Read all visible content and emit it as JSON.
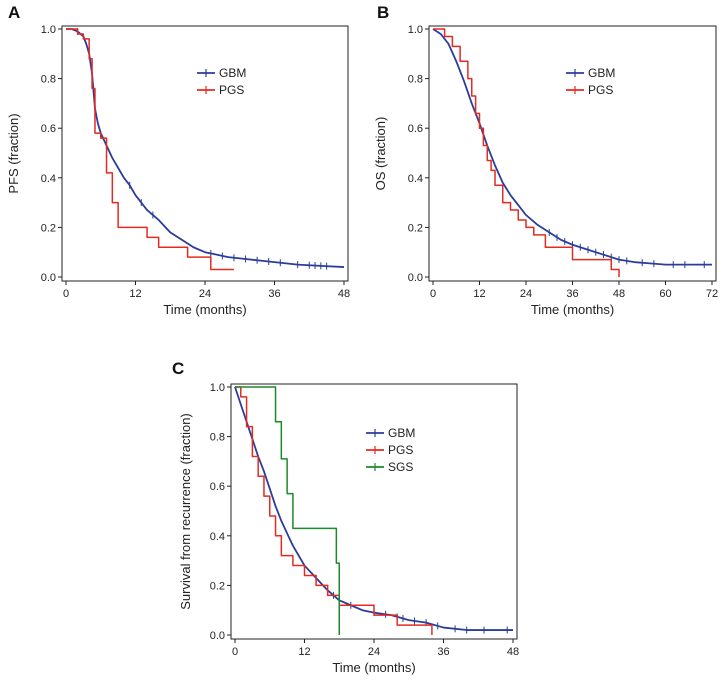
{
  "figure": {
    "panels": [
      "A",
      "B",
      "C"
    ]
  },
  "colors": {
    "GBM": "#2b3d9b",
    "PGS": "#e32b22",
    "SGS": "#1a8a2a",
    "axis": "#222222"
  },
  "chart_data": [
    {
      "panel": "A",
      "type": "line",
      "title": "",
      "xlabel": "Time (months)",
      "ylabel": "PFS (fraction)",
      "xlim": [
        0,
        48
      ],
      "ylim": [
        0,
        1.0
      ],
      "xticks": [
        0,
        12,
        24,
        36,
        48
      ],
      "yticks": [
        "0.0",
        "0.2",
        "0.4",
        "0.6",
        "0.8",
        "1.0"
      ],
      "legend": [
        "GBM",
        "PGS"
      ],
      "legend_position": "top-right",
      "series": [
        {
          "name": "GBM",
          "step": false,
          "x": [
            0,
            1,
            2,
            3,
            3.5,
            4,
            4.5,
            5,
            5.5,
            6,
            7,
            8,
            9,
            10,
            11,
            12,
            14,
            16,
            18,
            20,
            22,
            24,
            26,
            28,
            30,
            32,
            34,
            36,
            40,
            44,
            48
          ],
          "y": [
            1.0,
            1.0,
            0.99,
            0.97,
            0.94,
            0.9,
            0.82,
            0.68,
            0.62,
            0.58,
            0.53,
            0.48,
            0.44,
            0.4,
            0.37,
            0.33,
            0.27,
            0.23,
            0.18,
            0.15,
            0.12,
            0.1,
            0.09,
            0.08,
            0.075,
            0.07,
            0.065,
            0.06,
            0.05,
            0.045,
            0.04
          ],
          "censor_x": [
            2,
            11,
            13,
            15,
            25,
            27,
            29,
            31,
            33,
            35,
            37,
            40,
            42,
            43,
            44,
            45
          ]
        },
        {
          "name": "PGS",
          "step": true,
          "x": [
            0,
            2,
            3,
            4,
            4.5,
            5,
            6,
            7,
            8,
            9,
            14,
            16,
            21,
            25,
            29
          ],
          "y": [
            1.0,
            0.98,
            0.96,
            0.88,
            0.76,
            0.58,
            0.56,
            0.42,
            0.3,
            0.2,
            0.16,
            0.12,
            0.08,
            0.03,
            0.03
          ],
          "censor_x": []
        }
      ]
    },
    {
      "panel": "B",
      "type": "line",
      "title": "",
      "xlabel": "Time (months)",
      "ylabel": "OS (fraction)",
      "xlim": [
        0,
        72
      ],
      "ylim": [
        0,
        1.0
      ],
      "xticks": [
        0,
        12,
        24,
        36,
        48,
        60,
        72
      ],
      "yticks": [
        "0.0",
        "0.2",
        "0.4",
        "0.6",
        "0.8",
        "1.0"
      ],
      "legend": [
        "GBM",
        "PGS"
      ],
      "legend_position": "top-right",
      "series": [
        {
          "name": "GBM",
          "step": false,
          "x": [
            0,
            2,
            4,
            6,
            8,
            10,
            12,
            14,
            16,
            18,
            20,
            22,
            24,
            27,
            30,
            33,
            36,
            40,
            44,
            48,
            52,
            56,
            60,
            66,
            72
          ],
          "y": [
            1.0,
            0.98,
            0.94,
            0.87,
            0.79,
            0.7,
            0.62,
            0.53,
            0.45,
            0.38,
            0.33,
            0.29,
            0.25,
            0.21,
            0.18,
            0.15,
            0.13,
            0.11,
            0.09,
            0.07,
            0.06,
            0.055,
            0.05,
            0.05,
            0.05
          ],
          "censor_x": [
            30,
            32,
            34,
            36,
            38,
            40,
            42,
            44,
            46,
            48,
            50,
            54,
            57,
            62,
            65,
            70
          ]
        },
        {
          "name": "PGS",
          "step": true,
          "x": [
            0,
            3,
            5,
            7,
            9,
            10,
            11,
            12,
            13,
            14,
            15,
            16,
            18,
            20,
            22,
            24,
            26,
            29,
            36,
            46,
            48
          ],
          "y": [
            1.0,
            0.97,
            0.93,
            0.87,
            0.8,
            0.73,
            0.66,
            0.6,
            0.53,
            0.47,
            0.43,
            0.37,
            0.3,
            0.27,
            0.23,
            0.2,
            0.17,
            0.12,
            0.07,
            0.03,
            0.0
          ],
          "censor_x": []
        }
      ]
    },
    {
      "panel": "C",
      "type": "line",
      "title": "",
      "xlabel": "Time (months)",
      "ylabel": "Survival from recurrence (fraction)",
      "xlim": [
        0,
        48
      ],
      "ylim": [
        0,
        1.0
      ],
      "xticks": [
        0,
        12,
        24,
        36,
        48
      ],
      "yticks": [
        "0.0",
        "0.2",
        "0.4",
        "0.6",
        "0.8",
        "1.0"
      ],
      "legend": [
        "GBM",
        "PGS",
        "SGS"
      ],
      "legend_position": "top-right",
      "series": [
        {
          "name": "GBM",
          "step": false,
          "x": [
            0,
            1,
            2,
            3,
            4,
            5,
            6,
            7,
            8,
            9,
            10,
            11,
            12,
            14,
            16,
            18,
            20,
            22,
            24,
            27,
            30,
            33,
            36,
            40,
            44,
            48
          ],
          "y": [
            1.0,
            0.93,
            0.86,
            0.79,
            0.72,
            0.66,
            0.59,
            0.52,
            0.46,
            0.41,
            0.36,
            0.32,
            0.28,
            0.23,
            0.18,
            0.14,
            0.12,
            0.1,
            0.09,
            0.08,
            0.06,
            0.05,
            0.03,
            0.02,
            0.02,
            0.02
          ],
          "censor_x": [
            17,
            20,
            24,
            26,
            28,
            29,
            31,
            33,
            35,
            38,
            40,
            43,
            47
          ]
        },
        {
          "name": "PGS",
          "step": true,
          "x": [
            0,
            1,
            2,
            3,
            4,
            5,
            6,
            7,
            8,
            10,
            12,
            14,
            16,
            18,
            24,
            28,
            34
          ],
          "y": [
            1.0,
            0.96,
            0.84,
            0.72,
            0.64,
            0.56,
            0.48,
            0.4,
            0.32,
            0.28,
            0.24,
            0.2,
            0.16,
            0.12,
            0.08,
            0.04,
            0.0
          ],
          "censor_x": []
        },
        {
          "name": "SGS",
          "step": true,
          "x": [
            0,
            7,
            8,
            9,
            10,
            17.5,
            18
          ],
          "y": [
            1.0,
            0.86,
            0.71,
            0.57,
            0.43,
            0.29,
            0.0
          ],
          "censor_x": []
        }
      ]
    }
  ]
}
